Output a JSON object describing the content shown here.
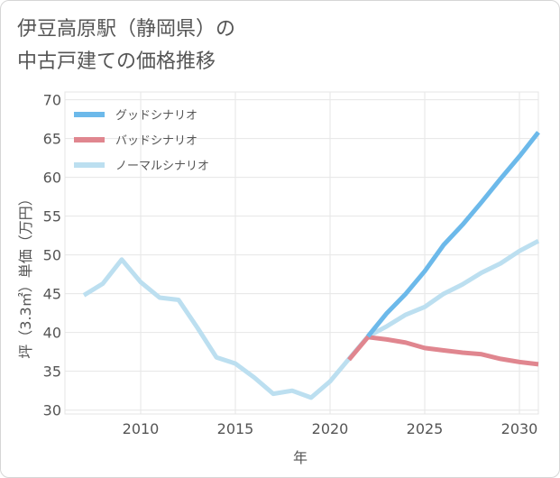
{
  "chart_data": {
    "type": "line",
    "title_line1": "伊豆高原駅（静岡県）の",
    "title_line2": "中古戸建ての価格推移",
    "xlabel": "年",
    "ylabel": "坪（3.3㎡）単価（万円）",
    "xlim": [
      2006,
      2031
    ],
    "ylim": [
      29.5,
      71
    ],
    "x_ticks": [
      2010,
      2015,
      2020,
      2025,
      2030
    ],
    "y_ticks": [
      30,
      35,
      40,
      45,
      50,
      55,
      60,
      65,
      70
    ],
    "grid": true,
    "legend_position": "top-left",
    "series": [
      {
        "name": "グッドシナリオ",
        "color": "#6cb9ea",
        "x": [
          2022,
          2023,
          2024,
          2025,
          2026,
          2027,
          2028,
          2029,
          2030,
          2031
        ],
        "values": [
          39.5,
          42.5,
          45.0,
          47.9,
          51.3,
          53.9,
          56.8,
          59.8,
          62.7,
          65.8
        ]
      },
      {
        "name": "バッドシナリオ",
        "color": "#e0868f",
        "x": [
          2021,
          2022,
          2023,
          2024,
          2025,
          2026,
          2027,
          2028,
          2029,
          2030,
          2031
        ],
        "values": [
          36.5,
          39.4,
          39.1,
          38.7,
          38.0,
          37.7,
          37.4,
          37.2,
          36.6,
          36.2,
          35.9
        ]
      },
      {
        "name": "ノーマルシナリオ",
        "color": "#bcdff0",
        "x": [
          2007,
          2008,
          2009,
          2010,
          2011,
          2012,
          2013,
          2014,
          2015,
          2016,
          2017,
          2018,
          2019,
          2020,
          2021,
          2022,
          2023,
          2024,
          2025,
          2026,
          2027,
          2028,
          2029,
          2030,
          2031
        ],
        "values": [
          44.8,
          46.3,
          49.4,
          46.5,
          44.5,
          44.2,
          40.6,
          36.8,
          36.0,
          34.2,
          32.1,
          32.5,
          31.6,
          33.7,
          36.6,
          39.5,
          40.8,
          42.3,
          43.3,
          45.0,
          46.2,
          47.7,
          48.9,
          50.5,
          51.8
        ]
      }
    ]
  }
}
